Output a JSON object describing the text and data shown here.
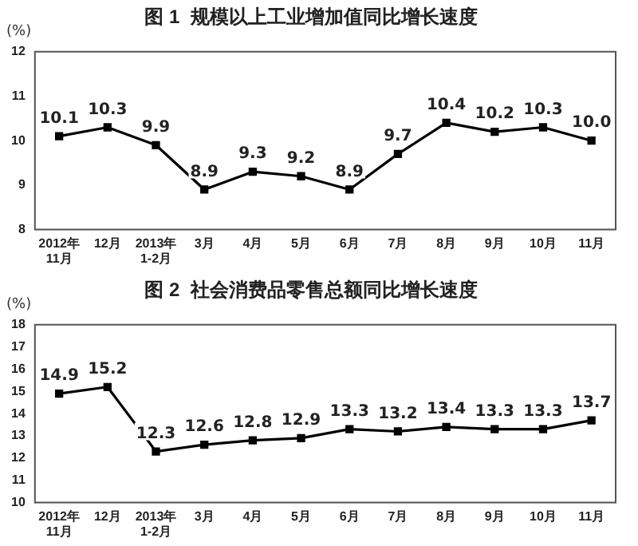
{
  "chart_data": [
    {
      "type": "line",
      "title": "图 1  规模以上工业增加值同比增长速度",
      "ylabel": "(%)",
      "categories": [
        "2012年 11月",
        "12月",
        "2013年 1-2月",
        "3月",
        "4月",
        "5月",
        "6月",
        "7月",
        "8月",
        "9月",
        "10月",
        "11月"
      ],
      "series": [
        {
          "color": "#000000",
          "values": [
            10.1,
            10.3,
            9.9,
            8.9,
            9.3,
            9.2,
            8.9,
            9.7,
            10.4,
            10.2,
            10.3,
            10.0
          ],
          "value_labels": [
            "10.1",
            "10.3",
            "9.9",
            "8.9",
            "9.3",
            "9.2",
            "8.9",
            "9.7",
            "10.4",
            "10.2",
            "10.3",
            "10.0"
          ]
        }
      ],
      "ylim": [
        8,
        12
      ],
      "yticks": [
        8,
        9,
        10,
        11,
        12
      ],
      "grid": false,
      "legend": false,
      "marker": "square",
      "line_style": "solid"
    },
    {
      "type": "line",
      "title": "图 2  社会消费品零售总额同比增长速度",
      "ylabel": "(%)",
      "categories": [
        "2012年 11月",
        "12月",
        "2013年 1-2月",
        "3月",
        "4月",
        "5月",
        "6月",
        "7月",
        "8月",
        "9月",
        "10月",
        "11月"
      ],
      "series": [
        {
          "color": "#000000",
          "values": [
            14.9,
            15.2,
            12.3,
            12.6,
            12.8,
            12.9,
            13.3,
            13.2,
            13.4,
            13.3,
            13.3,
            13.7
          ]
        }
      ],
      "ylim": [
        10,
        18
      ],
      "yticks": [
        10,
        11,
        12,
        13,
        14,
        15,
        16,
        17,
        18
      ],
      "grid": false,
      "legend": false,
      "marker": "square",
      "line_style": "solid",
      "data_labels": true
    }
  ]
}
